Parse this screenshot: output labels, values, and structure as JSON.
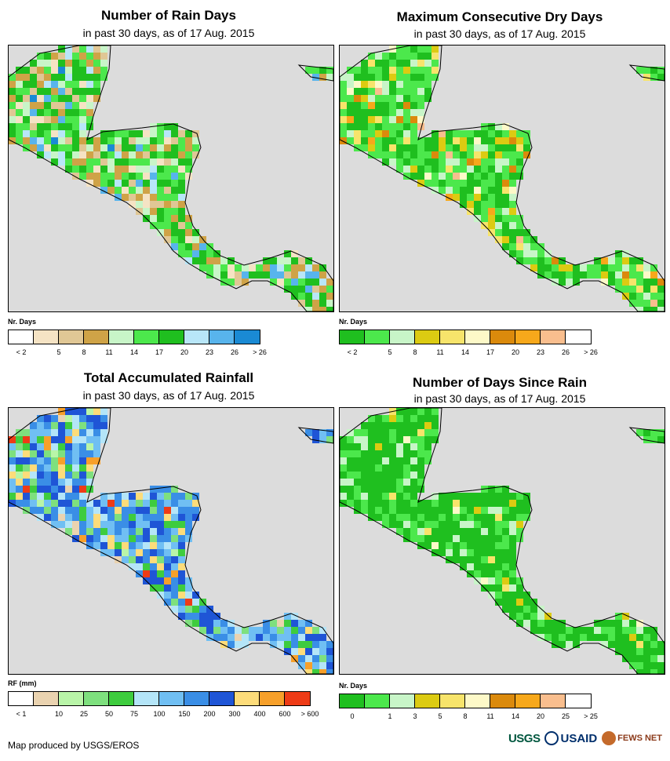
{
  "footer_text": "Map produced by USGS/EROS",
  "logos": {
    "usgs": "USGS",
    "usaid": "USAID",
    "fews": "FEWS NET"
  },
  "panels": [
    {
      "title": "Number of Rain Days",
      "subtitle": "in past 30 days, as of 17 Aug. 2015",
      "legend_label": "Nr. Days",
      "legend_colors": [
        "#ffffff",
        "#f5e3c4",
        "#e0c795",
        "#cfa347",
        "#c8f5c8",
        "#4ce84c",
        "#1fbf1f",
        "#b8e6f8",
        "#58b4ec",
        "#1a8ad4"
      ],
      "legend_ticks": [
        "< 2",
        "5",
        "8",
        "11",
        "14",
        "17",
        "20",
        "23",
        "26",
        "> 26"
      ],
      "palette_weights": [
        0,
        5,
        10,
        14,
        8,
        22,
        30,
        6,
        3,
        2
      ]
    },
    {
      "title": "Maximum Consecutive Dry Days",
      "subtitle": "in past 30 days, as of 17 Aug. 2015",
      "legend_label": "Nr. Days",
      "legend_colors": [
        "#1fbf1f",
        "#4ce84c",
        "#c8f5c8",
        "#dccb12",
        "#f7e46b",
        "#fdf9c8",
        "#db8a0c",
        "#f7a81b",
        "#f9be8e",
        "#ffffff"
      ],
      "legend_ticks": [
        "< 2",
        "5",
        "8",
        "11",
        "14",
        "17",
        "20",
        "23",
        "26",
        "> 26"
      ],
      "palette_weights": [
        28,
        34,
        14,
        8,
        6,
        3,
        4,
        2,
        1,
        0
      ]
    },
    {
      "title": "Total Accumulated Rainfall",
      "subtitle": "in past 30 days, as of 17 Aug. 2015",
      "legend_label": "RF (mm)",
      "legend_colors": [
        "#ffffff",
        "#ead3b0",
        "#b9f5a8",
        "#7ee07e",
        "#3ecc3e",
        "#b4e5f8",
        "#70bff3",
        "#3a8ee6",
        "#1f55d6",
        "#fddc7a",
        "#f7a02a",
        "#ee3b16"
      ],
      "legend_ticks": [
        "< 1",
        "10",
        "25",
        "50",
        "75",
        "100",
        "150",
        "200",
        "300",
        "400",
        "600",
        "> 600"
      ],
      "palette_weights": [
        0,
        2,
        4,
        10,
        8,
        12,
        16,
        22,
        14,
        5,
        4,
        3
      ]
    },
    {
      "title": "Number of Days Since Rain",
      "subtitle": "in past 30 days, as of 17 Aug. 2015",
      "legend_label": "Nr. Days",
      "legend_colors": [
        "#1fbf1f",
        "#4ce84c",
        "#c8f5c8",
        "#dccb12",
        "#f7e46b",
        "#fdf9c8",
        "#db8a0c",
        "#f7a81b",
        "#f9be8e",
        "#ffffff"
      ],
      "legend_ticks": [
        "0",
        "1",
        "3",
        "5",
        "8",
        "11",
        "14",
        "20",
        "25",
        "> 25"
      ],
      "palette_weights": [
        60,
        22,
        12,
        2,
        2,
        1,
        0,
        0,
        0,
        0
      ]
    }
  ]
}
